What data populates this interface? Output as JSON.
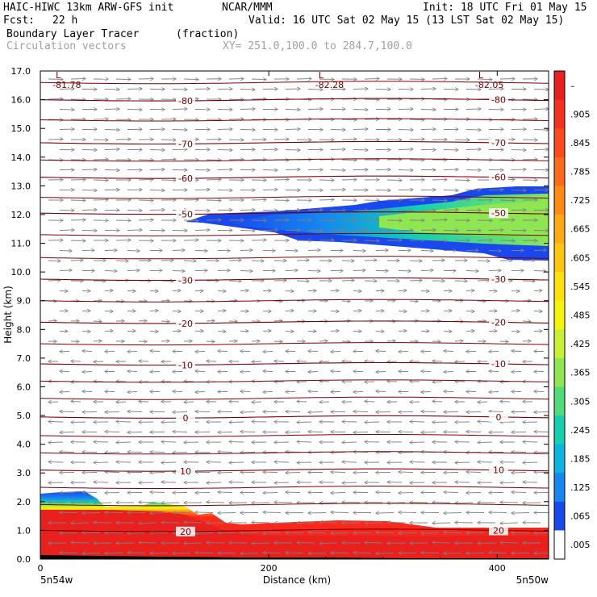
{
  "header": {
    "model": "HAIC-HIWC 13km ARW-GFS init",
    "org": "NCAR/MMM",
    "init": "Init: 18 UTC Fri 01 May 15",
    "fcst_label": "Fcst:",
    "fcst_value": "22 h",
    "valid": "Valid: 16 UTC Sat 02 May 15 (13 LST Sat 02 May 15)",
    "field": "Boundary Layer Tracer",
    "units": "(fraction)",
    "overlay": "Circulation vectors",
    "xsec": "XY= 251.0,100.0 to 284.7,100.0"
  },
  "chart_data": {
    "type": "heatmap",
    "ylabel": "Height (km)",
    "xlabel": "Distance (km)",
    "ylim": [
      0,
      17
    ],
    "xlim": [
      0,
      445
    ],
    "y_ticks": [
      "0.0",
      "1.0",
      "2.0",
      "3.0",
      "4.0",
      "5.0",
      "6.0",
      "7.0",
      "8.0",
      "9.0",
      "10.0",
      "11.0",
      "12.0",
      "13.0",
      "14.0",
      "15.0",
      "16.0",
      "17.0"
    ],
    "x_ticks": [
      {
        "label": "0",
        "value": 0
      },
      {
        "label": "200",
        "value": 200
      },
      {
        "label": "400",
        "value": 400
      }
    ],
    "x_endpoints": {
      "left": "5n54w",
      "right": "5n50w"
    },
    "colorbar_labels": [
      "–",
      ".905",
      ".845",
      ".785",
      ".725",
      ".665",
      ".605",
      ".545",
      ".485",
      ".425",
      ".365",
      ".305",
      ".245",
      ".185",
      ".125",
      ".065",
      ".005"
    ],
    "colorbar_colors": [
      "#e8201e",
      "#f4301e",
      "#fb4a1c",
      "#ff6a18",
      "#ff8a14",
      "#ffaa12",
      "#ffc60e",
      "#ffe00a",
      "#f6f40a",
      "#c8f034",
      "#8ee650",
      "#50dc78",
      "#14d0b0",
      "#0cb4e0",
      "#1488f0",
      "#1848ee",
      "#ffffff"
    ],
    "temperature_contours": [
      {
        "label": "-80",
        "y": 16.0
      },
      {
        "label": "-70",
        "y": 14.5
      },
      {
        "label": "-60",
        "y": 13.3
      },
      {
        "label": "-50",
        "y": 12.05
      },
      {
        "label": "-30",
        "y": 9.75
      },
      {
        "label": "-20",
        "y": 8.25
      },
      {
        "label": "-10",
        "y": 6.8
      },
      {
        "label": "0",
        "y": 4.95
      },
      {
        "label": "10",
        "y": 3.1
      },
      {
        "label": "20",
        "y": 1.0
      }
    ],
    "extra_contour_levels": [
      16.6,
      15.3,
      13.9,
      12.6,
      11.3,
      10.5,
      9.0,
      7.5,
      6.2,
      5.6,
      4.3,
      3.7,
      2.5,
      1.9
    ],
    "low_markers": [
      {
        "label": "L",
        "value": "-81.78",
        "x": 5
      },
      {
        "label": "L",
        "value": "-82.28",
        "x": 235
      },
      {
        "label": "L",
        "value": "-82.05",
        "x": 375
      }
    ]
  },
  "colors": {
    "contour": "#7a0000",
    "vector": "#808080",
    "frame": "#000000"
  }
}
